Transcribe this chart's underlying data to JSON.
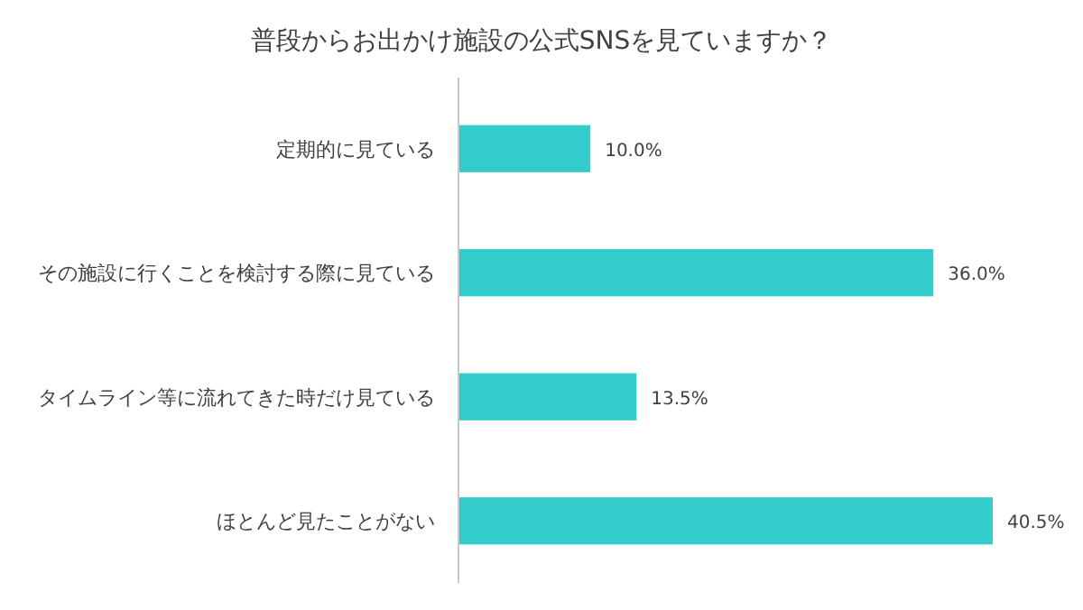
{
  "chart_data": {
    "type": "bar",
    "orientation": "horizontal",
    "title": "普段からお出かけ施設の公式SNSを見ていますか？",
    "categories": [
      "定期的に見ている",
      "その施設に行くことを検討する際に見ている",
      "タイムライン等に流れてきた時だけ見ている",
      "ほとんど見たことがない"
    ],
    "values": [
      10.0,
      36.0,
      13.5,
      40.5
    ],
    "value_labels": [
      "10.0%",
      "36.0%",
      "13.5%",
      "40.5%"
    ],
    "color": "#33cccc"
  }
}
